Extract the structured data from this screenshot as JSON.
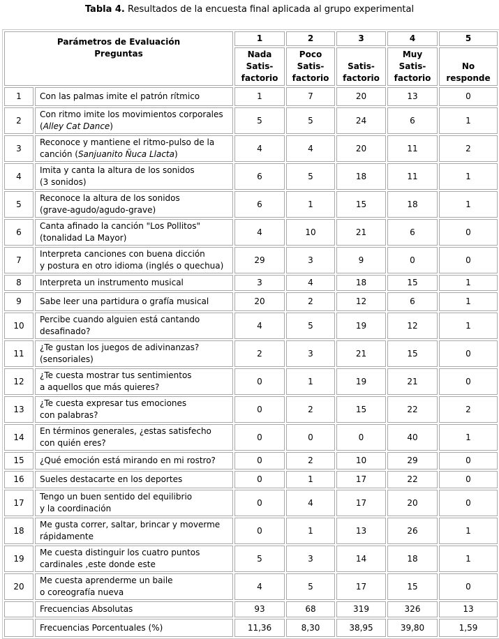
{
  "caption": {
    "label": "Tabla 4.",
    "text": " Resultados de la encuesta final aplicada al grupo experimental"
  },
  "header": {
    "param_title": "Parámetros de Evaluación",
    "param_subtitle": "Preguntas",
    "columns": [
      {
        "number": "1",
        "lines": [
          "Nada",
          "Satis-",
          "factorio"
        ]
      },
      {
        "number": "2",
        "lines": [
          "Poco",
          "Satis-",
          "factorio"
        ]
      },
      {
        "number": "3",
        "lines": [
          "Satis-",
          "factorio"
        ]
      },
      {
        "number": "4",
        "lines": [
          "Muy",
          "Satis-",
          "factorio"
        ]
      },
      {
        "number": "5",
        "lines": [
          "No",
          "responde"
        ]
      }
    ]
  },
  "rows": [
    {
      "n": "1",
      "lines": [
        [
          "Con las palmas imite el patrón rítmico"
        ]
      ],
      "values": [
        "1",
        "7",
        "20",
        "13",
        "0"
      ]
    },
    {
      "n": "2",
      "lines": [
        [
          "Con ritmo imite los movimientos corporales"
        ],
        [
          "(",
          {
            "em": "Alley Cat Dance"
          },
          ")"
        ]
      ],
      "values": [
        "5",
        "5",
        "24",
        "6",
        "1"
      ]
    },
    {
      "n": "3",
      "lines": [
        [
          "Reconoce y mantiene el ritmo-pulso de la"
        ],
        [
          "canción (",
          {
            "em": "Sanjuanito Ñuca Llacta"
          },
          ")"
        ]
      ],
      "values": [
        "4",
        "4",
        "20",
        "11",
        "2"
      ]
    },
    {
      "n": "4",
      "lines": [
        [
          "Imita  y canta la altura de los sonidos"
        ],
        [
          "(3 sonidos)"
        ]
      ],
      "values": [
        "6",
        "5",
        "18",
        "11",
        "1"
      ]
    },
    {
      "n": "5",
      "lines": [
        [
          "Reconoce la altura de los sonidos"
        ],
        [
          "(grave-agudo/agudo-grave)"
        ]
      ],
      "values": [
        "6",
        "1",
        "15",
        "18",
        "1"
      ]
    },
    {
      "n": "6",
      "lines": [
        [
          "Canta afinado la canción \"Los Pollitos\""
        ],
        [
          "(tonalidad La Mayor)"
        ]
      ],
      "values": [
        "4",
        "10",
        "21",
        "6",
        "0"
      ]
    },
    {
      "n": "7",
      "lines": [
        [
          "Interpreta canciones con buena dicción"
        ],
        [
          "y postura en otro idioma (inglés o quechua)"
        ]
      ],
      "values": [
        "29",
        "3",
        "9",
        "0",
        "0"
      ]
    },
    {
      "n": "8",
      "lines": [
        [
          "Interpreta un instrumento musical"
        ]
      ],
      "values": [
        "3",
        "4",
        "18",
        "15",
        "1"
      ]
    },
    {
      "n": "9",
      "lines": [
        [
          "Sabe leer una partidura o grafía musical"
        ]
      ],
      "values": [
        "20",
        "2",
        "12",
        "6",
        "1"
      ]
    },
    {
      "n": "10",
      "lines": [
        [
          "Percibe cuando alguien está cantando"
        ],
        [
          "desafinado?"
        ]
      ],
      "values": [
        "4",
        "5",
        "19",
        "12",
        "1"
      ]
    },
    {
      "n": "11",
      "lines": [
        [
          "¿Te gustan los juegos de adivinanzas?"
        ],
        [
          "(sensoriales)"
        ]
      ],
      "values": [
        "2",
        "3",
        "21",
        "15",
        "0"
      ]
    },
    {
      "n": "12",
      "lines": [
        [
          "¿Te cuesta mostrar tus sentimientos"
        ],
        [
          "a aquellos  que más quieres?"
        ]
      ],
      "values": [
        "0",
        "1",
        "19",
        "21",
        "0"
      ]
    },
    {
      "n": "13",
      "lines": [
        [
          "¿Te cuesta expresar tus emociones"
        ],
        [
          "con palabras?"
        ]
      ],
      "values": [
        "0",
        "2",
        "15",
        "22",
        "2"
      ]
    },
    {
      "n": "14",
      "lines": [
        [
          "En términos generales, ¿estas satisfecho"
        ],
        [
          "con quién eres?"
        ]
      ],
      "values": [
        "0",
        "0",
        "0",
        "40",
        "1"
      ]
    },
    {
      "n": "15",
      "lines": [
        [
          "¿Qué emoción está mirando en mi rostro?"
        ]
      ],
      "values": [
        "0",
        "2",
        "10",
        "29",
        "0"
      ]
    },
    {
      "n": "16",
      "lines": [
        [
          "Sueles destacarte  en los deportes"
        ]
      ],
      "values": [
        "0",
        "1",
        "17",
        "22",
        "0"
      ]
    },
    {
      "n": "17",
      "lines": [
        [
          "Tengo un buen sentido del equilibrio"
        ],
        [
          "y la coordinación"
        ]
      ],
      "values": [
        "0",
        "4",
        "17",
        "20",
        "0"
      ]
    },
    {
      "n": "18",
      "lines": [
        [
          "Me gusta correr, saltar, brincar y moverme"
        ],
        [
          "rápidamente"
        ]
      ],
      "values": [
        "0",
        "1",
        "13",
        "26",
        "1"
      ]
    },
    {
      "n": "19",
      "lines": [
        [
          "Me cuesta distinguir los cuatro puntos"
        ],
        [
          "cardinales ,este donde este"
        ]
      ],
      "values": [
        "5",
        "3",
        "14",
        "18",
        "1"
      ]
    },
    {
      "n": "20",
      "lines": [
        [
          "Me cuesta aprenderme un baile"
        ],
        [
          "o coreografía nueva"
        ]
      ],
      "values": [
        "4",
        "5",
        "17",
        "15",
        "0"
      ]
    }
  ],
  "totals": [
    {
      "label": "Frecuencias Absolutas",
      "values": [
        "93",
        "68",
        "319",
        "326",
        "13"
      ]
    },
    {
      "label": "Frecuencias Porcentuales (%)",
      "values": [
        "11,36",
        "8,30",
        "38,95",
        "39,80",
        "1,59"
      ]
    }
  ]
}
